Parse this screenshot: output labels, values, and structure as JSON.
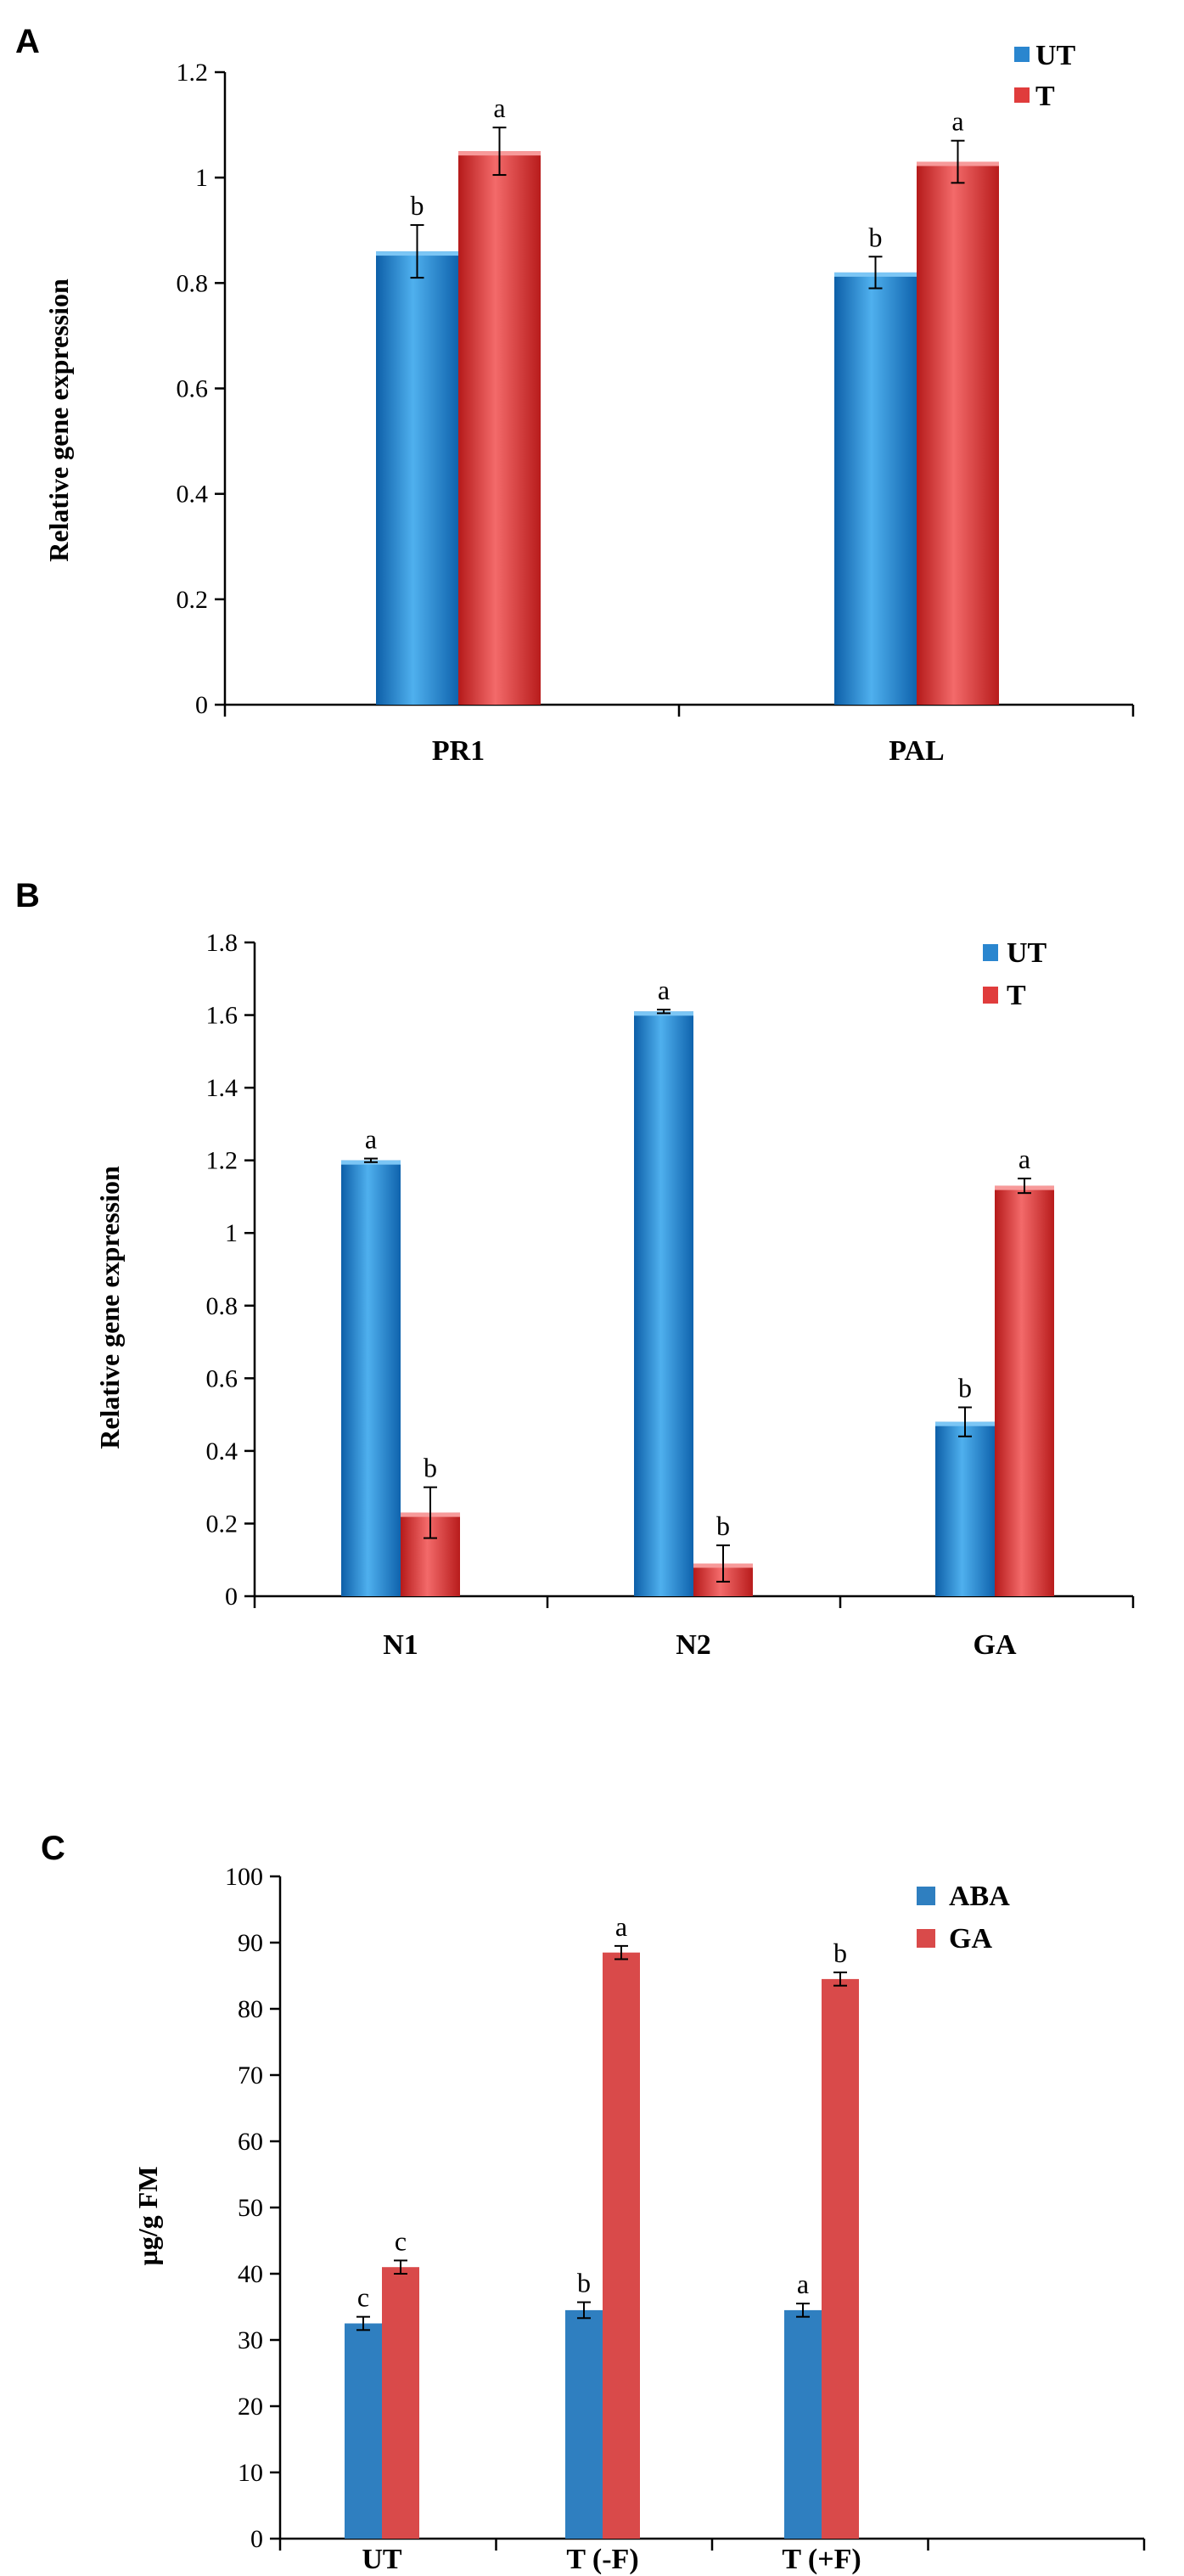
{
  "chart_data": [
    {
      "panel": "A",
      "type": "bar",
      "ylabel": "Relative gene expression",
      "xlabel": "",
      "categories": [
        "PR1",
        "PAL"
      ],
      "yticks": [
        "0",
        "0.2",
        "0.4",
        "0.6",
        "0.8",
        "1",
        "1.2"
      ],
      "ylim": [
        0,
        1.2
      ],
      "grid": false,
      "legend_position": "top-right",
      "series": [
        {
          "name": "UT",
          "color": "#2a86cf",
          "values": [
            0.86,
            0.82
          ],
          "errors": [
            0.05,
            0.03
          ],
          "significance": [
            "b",
            "b"
          ]
        },
        {
          "name": "T",
          "color": "#e03c3c",
          "values": [
            1.05,
            1.03
          ],
          "errors": [
            0.045,
            0.04
          ],
          "significance": [
            "a",
            "a"
          ]
        }
      ]
    },
    {
      "panel": "B",
      "type": "bar",
      "ylabel": "Relative gene expression",
      "xlabel": "",
      "categories": [
        "N1",
        "N2",
        "GA"
      ],
      "yticks": [
        "0",
        "0.2",
        "0.4",
        "0.6",
        "0.8",
        "1",
        "1.2",
        "1.4",
        "1.6",
        "1.8"
      ],
      "ylim": [
        0,
        1.8
      ],
      "grid": false,
      "legend_position": "top-right",
      "series": [
        {
          "name": "UT",
          "color": "#2a86cf",
          "values": [
            1.2,
            1.61,
            0.48
          ],
          "errors": [
            0.005,
            0.005,
            0.04
          ],
          "significance": [
            "a",
            "a",
            "b"
          ]
        },
        {
          "name": "T",
          "color": "#e03c3c",
          "values": [
            0.23,
            0.09,
            1.13
          ],
          "errors": [
            0.07,
            0.05,
            0.02
          ],
          "significance": [
            "b",
            "b",
            "a"
          ]
        }
      ]
    },
    {
      "panel": "C",
      "type": "bar",
      "ylabel": "µg/g FM",
      "xlabel": "",
      "categories": [
        "UT",
        "T (-F)",
        "T (+F)"
      ],
      "yticks": [
        "0",
        "10",
        "20",
        "30",
        "40",
        "50",
        "60",
        "70",
        "80",
        "90",
        "100"
      ],
      "ylim": [
        0,
        100
      ],
      "grid": false,
      "legend_position": "top-right",
      "series": [
        {
          "name": "ABA",
          "color": "#2f7fc0",
          "values": [
            32.5,
            34.5,
            34.5
          ],
          "errors": [
            1.0,
            1.2,
            1.0
          ],
          "significance": [
            "c",
            "b",
            "a"
          ]
        },
        {
          "name": "GA",
          "color": "#d94a4a",
          "values": [
            41,
            88.5,
            84.5
          ],
          "errors": [
            1.0,
            1.0,
            1.0
          ],
          "significance": [
            "c",
            "a",
            "b"
          ]
        }
      ]
    }
  ]
}
